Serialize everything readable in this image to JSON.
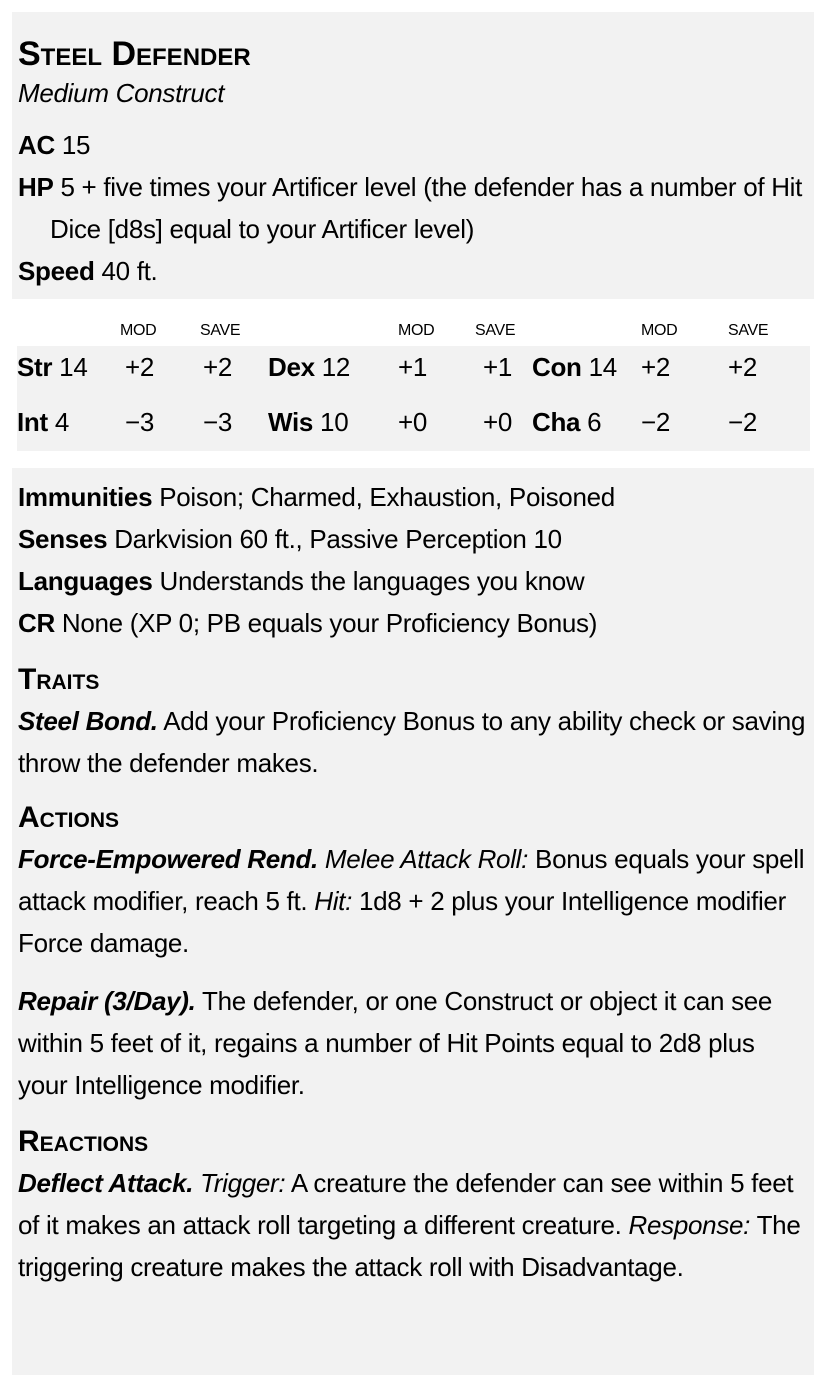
{
  "name": "Steel Defender",
  "type": "Medium Construct",
  "ac": {
    "label": "AC",
    "value": "15"
  },
  "hp": {
    "label": "HP",
    "value": "5 + five times your Artificer level (the defender has a number of Hit Dice [d8s] equal to your Artificer level)"
  },
  "speed": {
    "label": "Speed",
    "value": "40 ft."
  },
  "stat_headers": {
    "mod": "MOD",
    "save": "SAVE"
  },
  "abilities": [
    {
      "name": "Str",
      "score": "14",
      "mod": "+2",
      "save": "+2"
    },
    {
      "name": "Dex",
      "score": "12",
      "mod": "+1",
      "save": "+1"
    },
    {
      "name": "Con",
      "score": "14",
      "mod": "+2",
      "save": "+2"
    },
    {
      "name": "Int",
      "score": "4",
      "mod": "−3",
      "save": "−3"
    },
    {
      "name": "Wis",
      "score": "10",
      "mod": "+0",
      "save": "+0"
    },
    {
      "name": "Cha",
      "score": "6",
      "mod": "−2",
      "save": "−2"
    }
  ],
  "immunities": {
    "label": "Immunities",
    "value": "Poison; Charmed, Exhaustion, Poisoned"
  },
  "senses": {
    "label": "Senses",
    "value": "Darkvision 60 ft., Passive Perception 10"
  },
  "languages": {
    "label": "Languages",
    "value": "Understands the languages you know"
  },
  "cr": {
    "label": "CR",
    "value": "None (XP 0; PB equals your Proficiency Bonus)"
  },
  "traits": {
    "heading": "Traits",
    "items": [
      {
        "name": "Steel Bond.",
        "text": "Add your Proficiency Bonus to any ability check or saving throw the defender makes."
      }
    ]
  },
  "actions": {
    "heading": "Actions",
    "items": [
      {
        "name": "Force-Empowered Rend.",
        "t1i": "Melee Attack Roll:",
        "t1": "Bonus equals your spell attack modifier, reach 5 ft.",
        "t2i": "Hit:",
        "t2": "1d8 + 2 plus your Intelligence modifier Force damage."
      },
      {
        "name": "Repair (3/Day).",
        "text": "The defender, or one Construct or object it can see within 5 feet of it, regains a number of Hit Points equal to 2d8 plus your Intelligence modifier."
      }
    ]
  },
  "reactions": {
    "heading": "Reactions",
    "items": [
      {
        "name": "Deflect Attack.",
        "t1i": "Trigger:",
        "t1": "A creature the defender can see within 5 feet of it makes an attack roll targeting a different creature.",
        "t2i": "Response:",
        "t2": "The triggering creature makes the attack roll with Disadvantage."
      }
    ]
  }
}
